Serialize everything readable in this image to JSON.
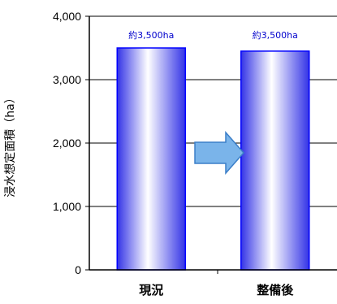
{
  "chart_data": {
    "type": "bar",
    "title": "",
    "xlabel": "",
    "ylabel": "浸水想定面積（ha）",
    "categories": [
      "現況",
      "整備後"
    ],
    "values": [
      3500,
      3450
    ],
    "data_labels": [
      "約3,500ha",
      "約3,500ha"
    ],
    "yticks": [
      0,
      1000,
      2000,
      3000,
      4000
    ],
    "ytick_labels": [
      "0",
      "1,000",
      "2,000",
      "3,000",
      "4,000"
    ],
    "ylim": [
      0,
      4000
    ],
    "grid": true,
    "legend": "none",
    "annotation": "arrow-right between bars",
    "colors": {
      "bar_edge": "#0000ff",
      "bar_center": "#ffffff",
      "bar_side": "#3333e6",
      "data_label": "#0000cc",
      "arrow_fill": "#7ab4ea",
      "arrow_stroke": "#3b7ec8"
    }
  }
}
